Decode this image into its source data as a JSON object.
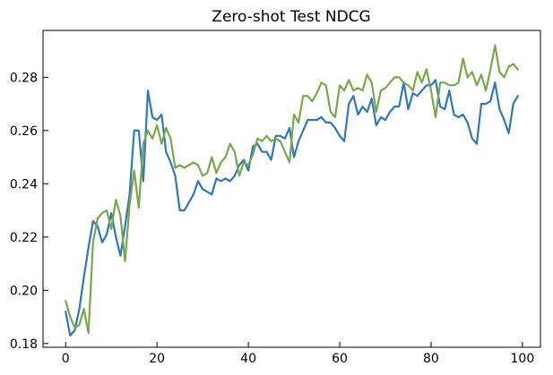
{
  "chart_data": {
    "type": "line",
    "title": "Zero-shot Test NDCG",
    "xlabel": "",
    "ylabel": "",
    "xlim": [
      -4.95,
      103.95
    ],
    "ylim": [
      0.1786,
      0.2976
    ],
    "xticks": [
      0,
      20,
      40,
      60,
      80,
      100
    ],
    "yticks": [
      0.18,
      0.2,
      0.22,
      0.24,
      0.26,
      0.28
    ],
    "x_tick_labels": [
      "0",
      "20",
      "40",
      "60",
      "80",
      "100"
    ],
    "y_tick_labels": [
      "0.18",
      "0.20",
      "0.22",
      "0.24",
      "0.26",
      "0.28"
    ],
    "grid": false,
    "legend": null,
    "series": [
      {
        "color": "#2e78bd",
        "x": [
          0,
          1,
          2,
          3,
          4,
          5,
          6,
          7,
          8,
          9,
          10,
          11,
          12,
          13,
          14,
          15,
          16,
          17,
          18,
          19,
          20,
          21,
          22,
          23,
          24,
          25,
          26,
          27,
          28,
          29,
          30,
          31,
          32,
          33,
          34,
          35,
          36,
          37,
          38,
          39,
          40,
          41,
          42,
          43,
          44,
          45,
          46,
          47,
          48,
          49,
          50,
          51,
          52,
          53,
          54,
          55,
          56,
          57,
          58,
          59,
          60,
          61,
          62,
          63,
          64,
          65,
          66,
          67,
          68,
          69,
          70,
          71,
          72,
          73,
          74,
          75,
          76,
          77,
          78,
          79,
          80,
          81,
          82,
          83,
          84,
          85,
          86,
          87,
          88,
          89,
          90,
          91,
          92,
          93,
          94,
          95,
          96,
          97,
          98,
          99
        ],
        "values": [
          0.192,
          0.183,
          0.185,
          0.193,
          0.205,
          0.216,
          0.226,
          0.224,
          0.218,
          0.221,
          0.229,
          0.22,
          0.213,
          0.224,
          0.236,
          0.26,
          0.26,
          0.241,
          0.275,
          0.265,
          0.264,
          0.266,
          0.252,
          0.248,
          0.243,
          0.23,
          0.23,
          0.233,
          0.236,
          0.241,
          0.238,
          0.237,
          0.236,
          0.242,
          0.241,
          0.242,
          0.241,
          0.243,
          0.247,
          0.249,
          0.245,
          0.254,
          0.255,
          0.252,
          0.252,
          0.249,
          0.258,
          0.258,
          0.257,
          0.261,
          0.25,
          0.256,
          0.26,
          0.264,
          0.264,
          0.264,
          0.265,
          0.263,
          0.263,
          0.261,
          0.258,
          0.256,
          0.27,
          0.273,
          0.266,
          0.269,
          0.267,
          0.272,
          0.262,
          0.265,
          0.264,
          0.267,
          0.269,
          0.269,
          0.278,
          0.268,
          0.274,
          0.273,
          0.275,
          0.277,
          0.277,
          0.279,
          0.269,
          0.268,
          0.275,
          0.266,
          0.265,
          0.266,
          0.263,
          0.257,
          0.255,
          0.27,
          0.27,
          0.271,
          0.278,
          0.268,
          0.264,
          0.259,
          0.27,
          0.273
        ]
      },
      {
        "color": "#77a94b",
        "x": [
          0,
          1,
          2,
          3,
          4,
          5,
          6,
          7,
          8,
          9,
          10,
          11,
          12,
          13,
          14,
          15,
          16,
          17,
          18,
          19,
          20,
          21,
          22,
          23,
          24,
          25,
          26,
          27,
          28,
          29,
          30,
          31,
          32,
          33,
          34,
          35,
          36,
          37,
          38,
          39,
          40,
          41,
          42,
          43,
          44,
          45,
          46,
          47,
          48,
          49,
          50,
          51,
          52,
          53,
          54,
          55,
          56,
          57,
          58,
          59,
          60,
          61,
          62,
          63,
          64,
          65,
          66,
          67,
          68,
          69,
          70,
          71,
          72,
          73,
          74,
          75,
          76,
          77,
          78,
          79,
          80,
          81,
          82,
          83,
          84,
          85,
          86,
          87,
          88,
          89,
          90,
          91,
          92,
          93,
          94,
          95,
          96,
          97,
          98,
          99
        ],
        "values": [
          0.196,
          0.19,
          0.186,
          0.187,
          0.193,
          0.184,
          0.218,
          0.227,
          0.229,
          0.23,
          0.223,
          0.234,
          0.228,
          0.211,
          0.232,
          0.245,
          0.231,
          0.255,
          0.26,
          0.257,
          0.262,
          0.255,
          0.261,
          0.257,
          0.246,
          0.247,
          0.246,
          0.247,
          0.248,
          0.247,
          0.243,
          0.244,
          0.25,
          0.244,
          0.248,
          0.25,
          0.255,
          0.252,
          0.243,
          0.248,
          0.247,
          0.251,
          0.257,
          0.256,
          0.258,
          0.256,
          0.257,
          0.256,
          0.252,
          0.248,
          0.266,
          0.263,
          0.273,
          0.273,
          0.271,
          0.274,
          0.278,
          0.277,
          0.267,
          0.265,
          0.277,
          0.275,
          0.279,
          0.275,
          0.276,
          0.275,
          0.281,
          0.278,
          0.267,
          0.275,
          0.276,
          0.278,
          0.28,
          0.28,
          0.278,
          0.277,
          0.275,
          0.282,
          0.278,
          0.283,
          0.275,
          0.265,
          0.278,
          0.278,
          0.277,
          0.277,
          0.278,
          0.287,
          0.28,
          0.282,
          0.277,
          0.281,
          0.275,
          0.283,
          0.292,
          0.282,
          0.28,
          0.284,
          0.285,
          0.283
        ]
      }
    ]
  }
}
